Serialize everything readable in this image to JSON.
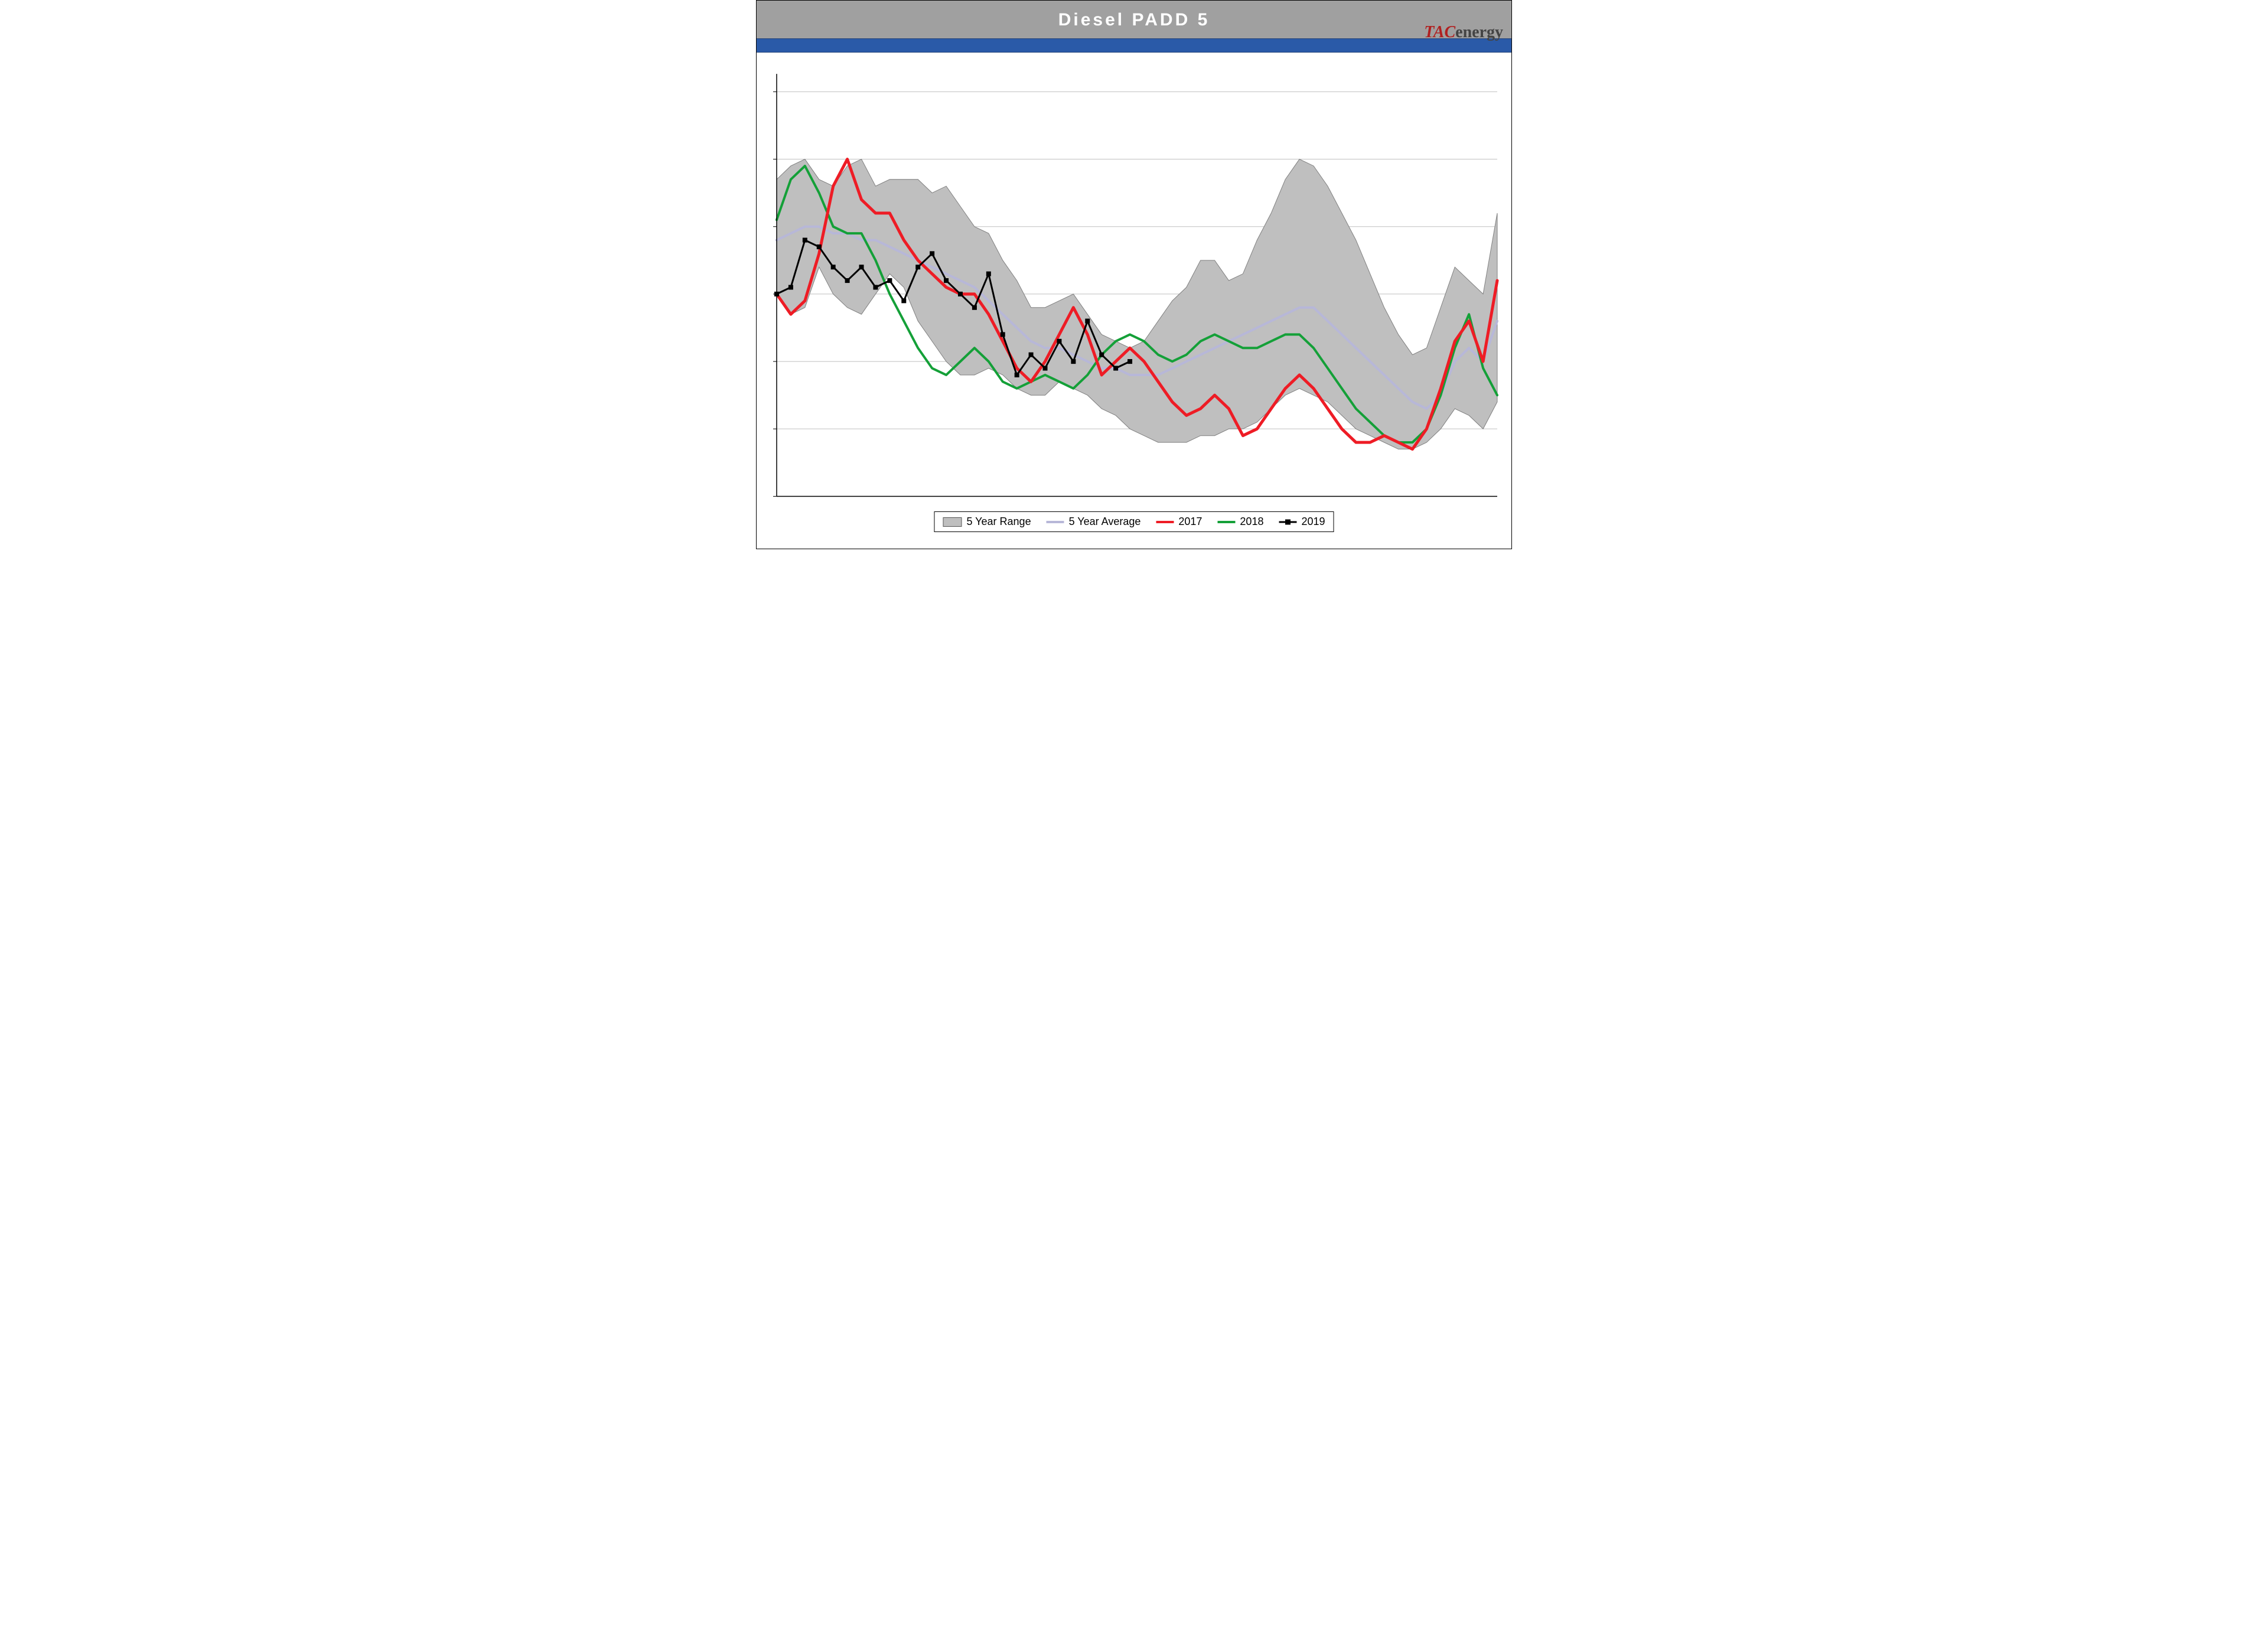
{
  "title": "Diesel  PADD  5",
  "logo": {
    "tac": "TAC",
    "energy": "energy"
  },
  "chart": {
    "type": "line",
    "background_color": "#ffffff",
    "grid_color": "#bfbfbf",
    "axis_color": "#000000",
    "x_count": 52,
    "ylim": [
      10,
      16
    ],
    "ytick_step": 1,
    "title_fontsize": 30,
    "title_color": "#ffffff",
    "title_bar_color": "#a0a0a0",
    "rule_color": "#2a5aa8",
    "series": {
      "range_high": {
        "label": "5 Year Range",
        "color_fill": "#bfbfbf",
        "color_stroke": "#808080",
        "stroke_width": 1,
        "values": [
          14.7,
          14.9,
          15.0,
          14.7,
          14.6,
          14.9,
          15.0,
          14.6,
          14.7,
          14.7,
          14.7,
          14.5,
          14.6,
          14.3,
          14.0,
          13.9,
          13.5,
          13.2,
          12.8,
          12.8,
          12.9,
          13.0,
          12.7,
          12.4,
          12.3,
          12.2,
          12.3,
          12.6,
          12.9,
          13.1,
          13.5,
          13.5,
          13.2,
          13.3,
          13.8,
          14.2,
          14.7,
          15.0,
          14.9,
          14.6,
          14.2,
          13.8,
          13.3,
          12.8,
          12.4,
          12.1,
          12.2,
          12.8,
          13.4,
          13.2,
          13.0,
          14.2
        ]
      },
      "range_low": {
        "values": [
          13.0,
          12.7,
          12.8,
          13.4,
          13.0,
          12.8,
          12.7,
          13.0,
          13.3,
          13.1,
          12.6,
          12.3,
          12.0,
          11.8,
          11.8,
          11.9,
          11.8,
          11.6,
          11.5,
          11.5,
          11.7,
          11.6,
          11.5,
          11.3,
          11.2,
          11.0,
          10.9,
          10.8,
          10.8,
          10.8,
          10.9,
          10.9,
          11.0,
          11.0,
          11.1,
          11.3,
          11.5,
          11.6,
          11.5,
          11.4,
          11.2,
          11.0,
          10.9,
          10.8,
          10.7,
          10.7,
          10.8,
          11.0,
          11.3,
          11.2,
          11.0,
          11.4
        ]
      },
      "avg": {
        "label": "5 Year Average",
        "color": "#b7b7d8",
        "stroke_width": 4,
        "values": [
          13.8,
          13.9,
          14.0,
          14.0,
          13.9,
          13.9,
          13.8,
          13.8,
          13.7,
          13.6,
          13.5,
          13.4,
          13.3,
          13.2,
          13.1,
          12.9,
          12.7,
          12.5,
          12.3,
          12.2,
          12.2,
          12.1,
          12.0,
          11.9,
          11.9,
          11.8,
          11.8,
          11.8,
          11.9,
          12.0,
          12.1,
          12.2,
          12.3,
          12.4,
          12.5,
          12.6,
          12.7,
          12.8,
          12.8,
          12.6,
          12.4,
          12.2,
          12.0,
          11.8,
          11.6,
          11.4,
          11.3,
          11.5,
          12.0,
          12.2,
          12.0,
          12.6
        ]
      },
      "y2017": {
        "label": "2017",
        "color": "#ee1c25",
        "stroke_width": 5,
        "values": [
          13.0,
          12.7,
          12.9,
          13.6,
          14.6,
          15.0,
          14.4,
          14.2,
          14.2,
          13.8,
          13.5,
          13.3,
          13.1,
          13.0,
          13.0,
          12.7,
          12.3,
          11.9,
          11.7,
          12.0,
          12.4,
          12.8,
          12.4,
          11.8,
          12.0,
          12.2,
          12.0,
          11.7,
          11.4,
          11.2,
          11.3,
          11.5,
          11.3,
          10.9,
          11.0,
          11.3,
          11.6,
          11.8,
          11.6,
          11.3,
          11.0,
          10.8,
          10.8,
          10.9,
          10.8,
          10.7,
          11.0,
          11.6,
          12.3,
          12.6,
          12.0,
          13.2
        ]
      },
      "y2018": {
        "label": "2018",
        "color": "#14a038",
        "stroke_width": 4,
        "values": [
          14.1,
          14.7,
          14.9,
          14.5,
          14.0,
          13.9,
          13.9,
          13.5,
          13.0,
          12.6,
          12.2,
          11.9,
          11.8,
          12.0,
          12.2,
          12.0,
          11.7,
          11.6,
          11.7,
          11.8,
          11.7,
          11.6,
          11.8,
          12.1,
          12.3,
          12.4,
          12.3,
          12.1,
          12.0,
          12.1,
          12.3,
          12.4,
          12.3,
          12.2,
          12.2,
          12.3,
          12.4,
          12.4,
          12.2,
          11.9,
          11.6,
          11.3,
          11.1,
          10.9,
          10.8,
          10.8,
          11.0,
          11.5,
          12.2,
          12.7,
          11.9,
          11.5
        ]
      },
      "y2019": {
        "label": "2019",
        "color": "#000000",
        "stroke_width": 3,
        "marker": "square",
        "marker_size": 8,
        "values": [
          13.0,
          13.1,
          13.8,
          13.7,
          13.4,
          13.2,
          13.4,
          13.1,
          13.2,
          12.9,
          13.4,
          13.6,
          13.2,
          13.0,
          12.8,
          13.3,
          12.4,
          11.8,
          12.1,
          11.9,
          12.3,
          12.0,
          12.6,
          12.1,
          11.9,
          12.0
        ]
      }
    },
    "legend": {
      "border_color": "#000000",
      "background": "#ffffff",
      "fontsize": 18,
      "items": [
        {
          "key": "range",
          "label": "5 Year Range"
        },
        {
          "key": "avg",
          "label": "5 Year Average"
        },
        {
          "key": "y2017",
          "label": "2017"
        },
        {
          "key": "y2018",
          "label": "2018"
        },
        {
          "key": "y2019",
          "label": "2019"
        }
      ]
    }
  }
}
